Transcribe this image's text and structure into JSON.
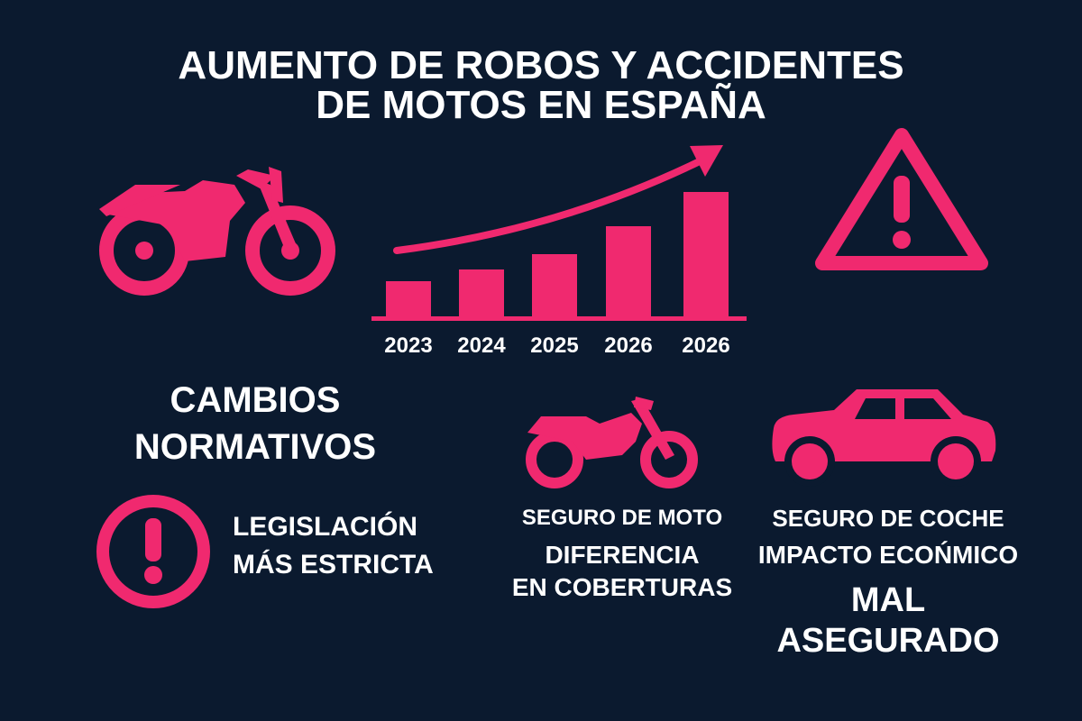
{
  "colors": {
    "background": "#0b1a2f",
    "accent": "#f0296f",
    "text": "#ffffff"
  },
  "title": {
    "line1": "AUMENTO DE ROBOS Y ACCIDENTES",
    "line2": "DE MOTOS EN ESPAÑA"
  },
  "icons": [
    "motorcycle-icon",
    "warning-triangle-icon",
    "exclamation-circle-icon",
    "motorcycle-small-icon",
    "car-icon",
    "trend-arrow-icon"
  ],
  "chart_data": {
    "type": "bar",
    "categories": [
      "2023",
      "2024",
      "2025",
      "2026",
      "2026"
    ],
    "values": [
      41,
      54,
      71,
      102,
      140
    ],
    "title": "",
    "xlabel": "",
    "ylabel": "",
    "ylim": [
      0,
      140
    ],
    "grid": false,
    "trend_arrow": true
  },
  "cambios": {
    "line1": "CAMBIOS",
    "line2": "NORMATIVOS"
  },
  "legislacion": {
    "line1": "LEGISLACIÓN",
    "line2": "MÁS ESTRICTA"
  },
  "seguro_moto": {
    "title": "SEGURO DE MOTO",
    "line1": "DIFERENCIA",
    "line2": "EN COBERTURAS"
  },
  "seguro_coche": {
    "title": "SEGURO DE COCHE",
    "subtitle": "IMPACTO ECOŃMICO",
    "line1": "MAL",
    "line2": "ASEGURADO"
  }
}
